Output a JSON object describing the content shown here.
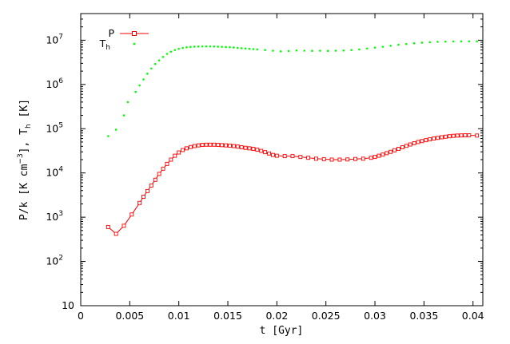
{
  "chart_data": {
    "type": "line",
    "title": "",
    "xlabel": "t [Gyr]",
    "ylabel": {
      "main_a": "P/k [K cm",
      "exp": "−3",
      "main_b": "], T",
      "sub": "h",
      "main_c": " [K]"
    },
    "xlim": [
      0,
      0.041
    ],
    "ylim": [
      10,
      40000000
    ],
    "yscale": "log",
    "xticks": [
      {
        "v": 0,
        "label": "0"
      },
      {
        "v": 0.005,
        "label": "0.005"
      },
      {
        "v": 0.01,
        "label": "0.01"
      },
      {
        "v": 0.015,
        "label": "0.015"
      },
      {
        "v": 0.02,
        "label": "0.02"
      },
      {
        "v": 0.025,
        "label": "0.025"
      },
      {
        "v": 0.03,
        "label": "0.03"
      },
      {
        "v": 0.035,
        "label": "0.035"
      },
      {
        "v": 0.04,
        "label": "0.04"
      }
    ],
    "yticks": [
      {
        "v": 10,
        "base": "10",
        "exp": ""
      },
      {
        "v": 100,
        "base": "10",
        "exp": "2"
      },
      {
        "v": 1000,
        "base": "10",
        "exp": "3"
      },
      {
        "v": 10000,
        "base": "10",
        "exp": "4"
      },
      {
        "v": 100000,
        "base": "10",
        "exp": "5"
      },
      {
        "v": 1000000,
        "base": "10",
        "exp": "6"
      },
      {
        "v": 10000000,
        "base": "10",
        "exp": "7"
      }
    ],
    "legend_position": "top-left",
    "series": [
      {
        "name": "P",
        "color": "#ff0000",
        "style": "line-with-open-squares",
        "x": [
          0.0028,
          0.0036,
          0.0044,
          0.0052,
          0.006,
          0.0064,
          0.0068,
          0.0072,
          0.0076,
          0.008,
          0.0084,
          0.0088,
          0.0092,
          0.0096,
          0.01,
          0.0104,
          0.0108,
          0.0112,
          0.0116,
          0.012,
          0.0124,
          0.0128,
          0.0132,
          0.0136,
          0.014,
          0.0144,
          0.0148,
          0.0152,
          0.0156,
          0.016,
          0.0164,
          0.0168,
          0.0172,
          0.0176,
          0.018,
          0.0184,
          0.0188,
          0.0192,
          0.0196,
          0.02,
          0.0208,
          0.0216,
          0.0224,
          0.0232,
          0.024,
          0.0248,
          0.0256,
          0.0264,
          0.0272,
          0.028,
          0.0288,
          0.0296,
          0.03,
          0.0304,
          0.0308,
          0.0312,
          0.0316,
          0.032,
          0.0324,
          0.0328,
          0.0332,
          0.0336,
          0.034,
          0.0344,
          0.0348,
          0.0352,
          0.0356,
          0.036,
          0.0364,
          0.0368,
          0.0372,
          0.0376,
          0.038,
          0.0384,
          0.0388,
          0.0392,
          0.0396,
          0.0404
        ],
        "y": [
          600,
          420,
          640,
          1150,
          2100,
          2900,
          3900,
          5200,
          7000,
          9500,
          12500,
          16000,
          20000,
          24500,
          29000,
          33000,
          36000,
          38500,
          40500,
          42000,
          43000,
          43500,
          43500,
          43500,
          43000,
          42500,
          42000,
          41500,
          40500,
          39500,
          38000,
          37000,
          36000,
          35000,
          33500,
          31500,
          29500,
          27500,
          25500,
          24500,
          24000,
          24000,
          23000,
          22000,
          21000,
          20500,
          20000,
          20000,
          20200,
          20700,
          21000,
          22000,
          23000,
          24500,
          26000,
          28000,
          30000,
          32500,
          35000,
          38000,
          41000,
          44000,
          47000,
          50000,
          52500,
          55000,
          57500,
          60000,
          62000,
          64000,
          66000,
          67500,
          69000,
          70000,
          70500,
          71000,
          71000,
          70000
        ]
      },
      {
        "name": "T",
        "name_sub": "h",
        "color": "#00ff00",
        "style": "points",
        "x": [
          0.0028,
          0.0036,
          0.0044,
          0.0048,
          0.0056,
          0.006,
          0.0064,
          0.0068,
          0.0072,
          0.0076,
          0.008,
          0.0084,
          0.0088,
          0.0092,
          0.0096,
          0.01,
          0.0104,
          0.0108,
          0.0112,
          0.0116,
          0.012,
          0.0124,
          0.0128,
          0.0132,
          0.0136,
          0.014,
          0.0144,
          0.0148,
          0.0152,
          0.0156,
          0.016,
          0.0164,
          0.0168,
          0.0172,
          0.0176,
          0.018,
          0.0188,
          0.0196,
          0.0204,
          0.0212,
          0.022,
          0.0228,
          0.0236,
          0.0244,
          0.0252,
          0.026,
          0.0268,
          0.0276,
          0.0284,
          0.0292,
          0.03,
          0.0308,
          0.0316,
          0.0324,
          0.0332,
          0.034,
          0.0348,
          0.0356,
          0.0364,
          0.0372,
          0.038,
          0.0388,
          0.0396,
          0.0404
        ],
        "y": [
          68000,
          95000,
          200000,
          400000,
          680000,
          950000,
          1300000,
          1750000,
          2300000,
          2900000,
          3500000,
          4200000,
          4900000,
          5500000,
          6000000,
          6400000,
          6700000,
          6900000,
          7050000,
          7150000,
          7200000,
          7250000,
          7250000,
          7250000,
          7200000,
          7150000,
          7100000,
          7000000,
          6950000,
          6850000,
          6700000,
          6600000,
          6500000,
          6400000,
          6300000,
          6200000,
          6000000,
          5800000,
          5600000,
          5700000,
          5850000,
          5800000,
          5750000,
          5800000,
          5750000,
          5800000,
          5850000,
          6000000,
          6200000,
          6500000,
          6800000,
          7100000,
          7500000,
          7900000,
          8200000,
          8500000,
          8800000,
          9000000,
          9200000,
          9300000,
          9400000,
          9450000,
          9450000,
          9400000
        ]
      }
    ]
  }
}
